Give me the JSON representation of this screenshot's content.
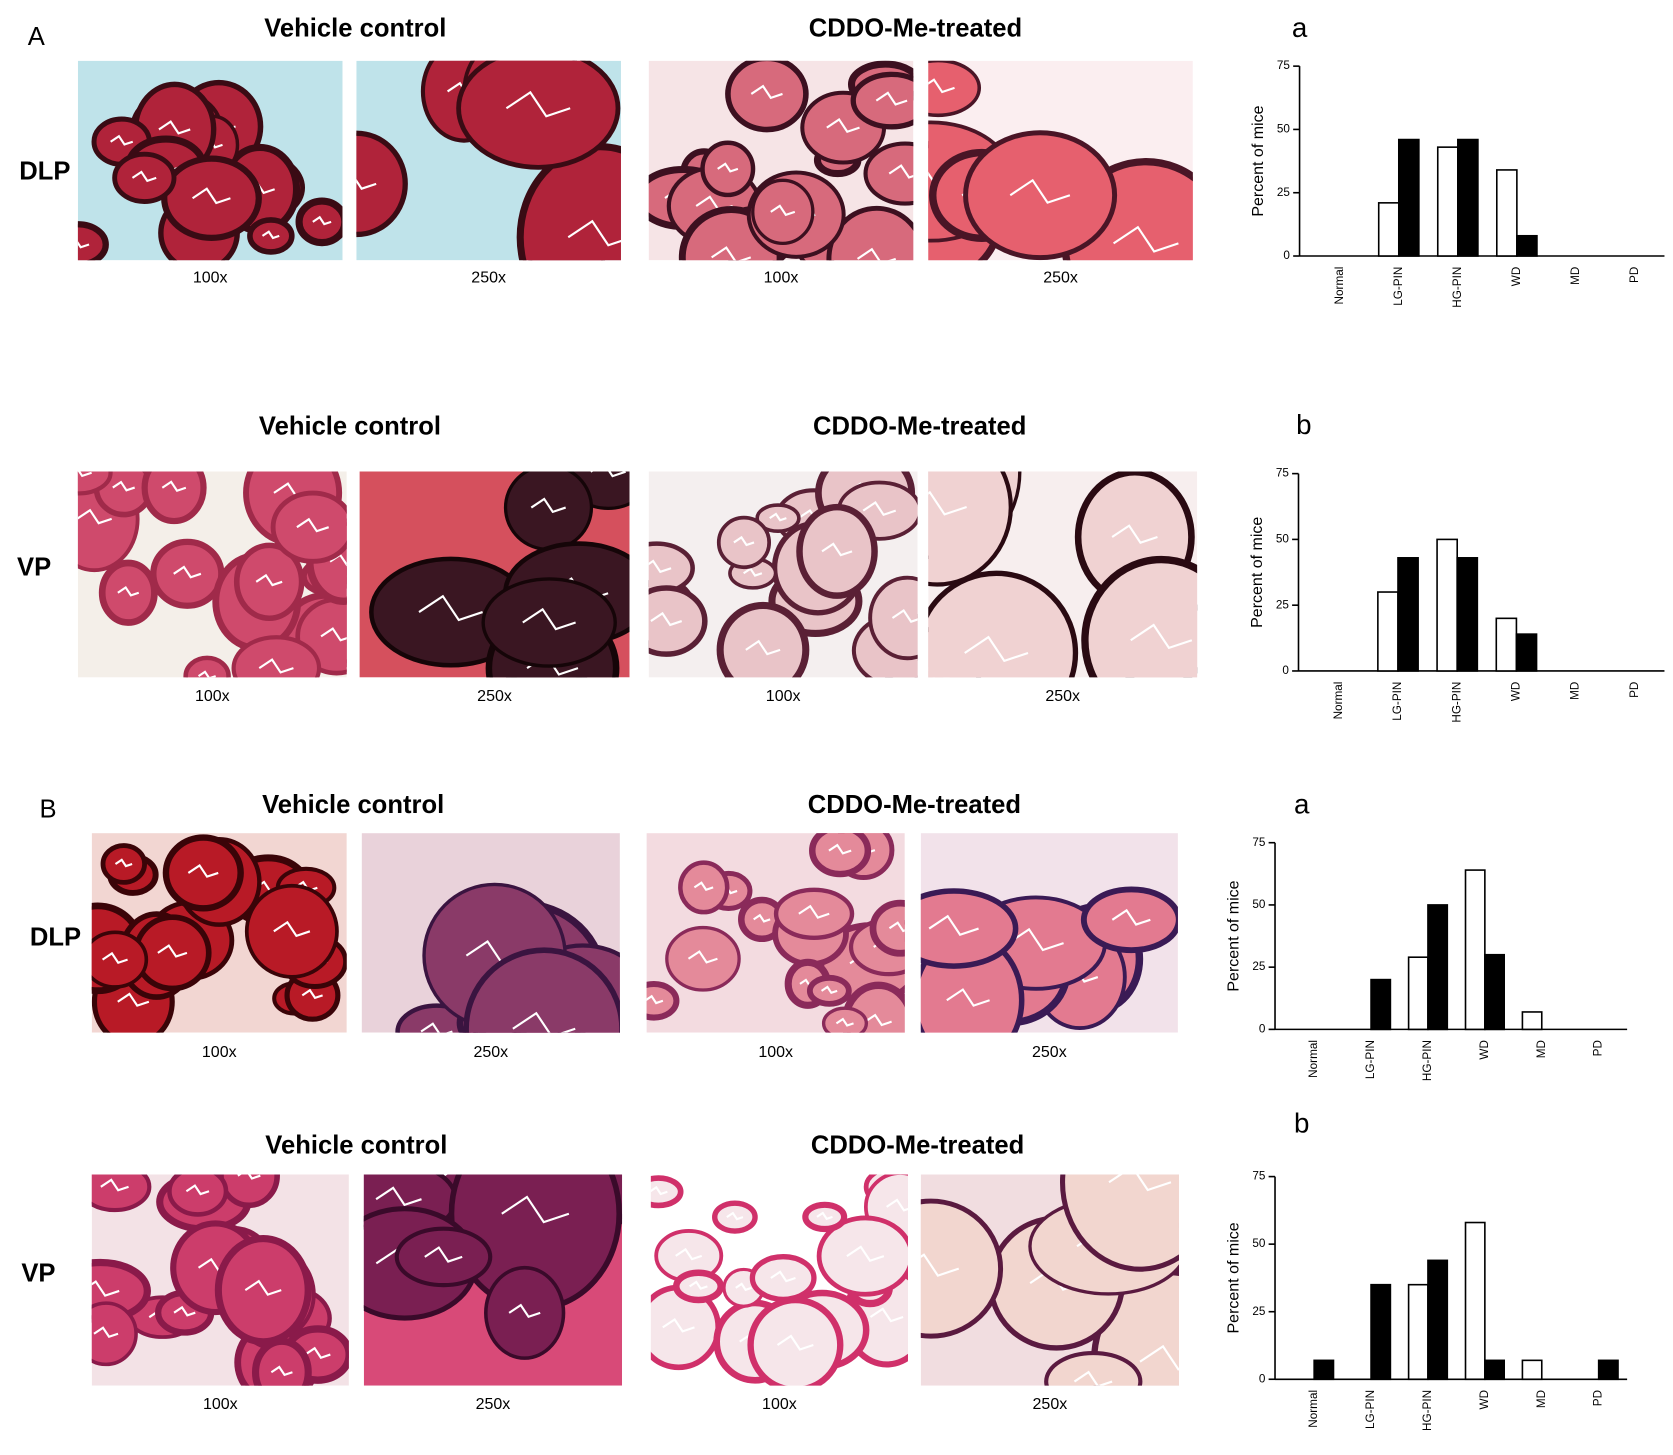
{
  "panels": [
    {
      "label": "A",
      "rows": [
        {
          "tissue": "DLP",
          "groups": [
            "Vehicle control",
            "CDDO-Me-treated"
          ],
          "magnifications": [
            "100x",
            "250x",
            "100x",
            "250x"
          ]
        },
        {
          "tissue": "VP",
          "groups": [
            "Vehicle control",
            "CDDO-Me-treated"
          ],
          "magnifications": [
            "100x",
            "250x",
            "100x",
            "250x"
          ]
        }
      ]
    },
    {
      "label": "B",
      "rows": [
        {
          "tissue": "DLP",
          "groups": [
            "Vehicle control",
            "CDDO-Me-treated"
          ],
          "magnifications": [
            "100x",
            "250x",
            "100x",
            "250x"
          ]
        },
        {
          "tissue": "VP",
          "groups": [
            "Vehicle control",
            "CDDO-Me-treated"
          ],
          "magnifications": [
            "100x",
            "250x",
            "100x",
            "250x"
          ]
        }
      ]
    }
  ],
  "chart_data": [
    {
      "type": "bar",
      "label": "a",
      "y_label": "Percent of mice",
      "categories": [
        "Normal",
        "LG-PIN",
        "HG-PIN",
        "WD",
        "MD",
        "PD"
      ],
      "series": [
        {
          "color": "#ffffff",
          "values": [
            0,
            21,
            43,
            34,
            0,
            0
          ]
        },
        {
          "color": "#000000",
          "values": [
            0,
            46,
            46,
            8,
            0,
            0
          ]
        }
      ],
      "ylim": [
        0,
        75
      ],
      "yticks": [
        0,
        25,
        50,
        75
      ]
    },
    {
      "type": "bar",
      "label": "b",
      "y_label": "Percent of mice",
      "categories": [
        "Normal",
        "LG-PIN",
        "HG-PIN",
        "WD",
        "MD",
        "PD"
      ],
      "series": [
        {
          "color": "#ffffff",
          "values": [
            0,
            30,
            50,
            20,
            0,
            0
          ]
        },
        {
          "color": "#000000",
          "values": [
            0,
            43,
            43,
            14,
            0,
            0
          ]
        }
      ],
      "ylim": [
        0,
        75
      ],
      "yticks": [
        0,
        25,
        50,
        75
      ]
    },
    {
      "type": "bar",
      "label": "a",
      "y_label": "Percent of mice",
      "categories": [
        "Normal",
        "LG-PIN",
        "HG-PIN",
        "WD",
        "MD",
        "PD"
      ],
      "series": [
        {
          "color": "#ffffff",
          "values": [
            0,
            0,
            29,
            64,
            7,
            0
          ]
        },
        {
          "color": "#000000",
          "values": [
            0,
            20,
            50,
            30,
            0,
            0
          ]
        }
      ],
      "ylim": [
        0,
        75
      ],
      "yticks": [
        0,
        25,
        50,
        75
      ]
    },
    {
      "type": "bar",
      "label": "b",
      "y_label": "Percent of mice",
      "categories": [
        "Normal",
        "LG-PIN",
        "HG-PIN",
        "WD",
        "MD",
        "PD"
      ],
      "series": [
        {
          "color": "#ffffff",
          "values": [
            0,
            0,
            35,
            58,
            7,
            0
          ]
        },
        {
          "color": "#000000",
          "values": [
            7,
            35,
            44,
            7,
            0,
            7
          ]
        }
      ],
      "ylim": [
        0,
        75
      ],
      "yticks": [
        0,
        25,
        50,
        75
      ]
    }
  ]
}
